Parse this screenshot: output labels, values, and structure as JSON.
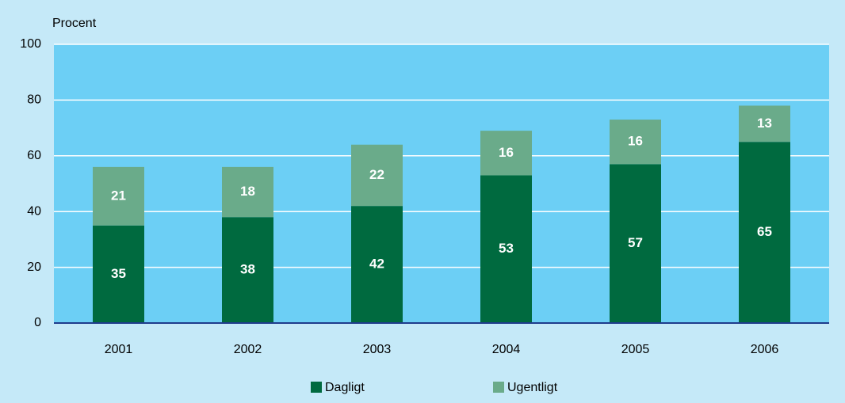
{
  "chart_data": {
    "type": "stacked_bar",
    "y_label": "Procent",
    "categories": [
      "2001",
      "2002",
      "2003",
      "2004",
      "2005",
      "2006"
    ],
    "series": [
      {
        "name": "Dagligt",
        "color": "#006a3f",
        "values": [
          35,
          38,
          42,
          53,
          57,
          65
        ]
      },
      {
        "name": "Ugentligt",
        "color": "#6aab8a",
        "values": [
          21,
          18,
          22,
          16,
          16,
          13
        ]
      }
    ],
    "ylim": [
      0,
      100
    ],
    "yticks": [
      0,
      20,
      40,
      60,
      80,
      100
    ],
    "grid": true,
    "legend": "bottom"
  }
}
